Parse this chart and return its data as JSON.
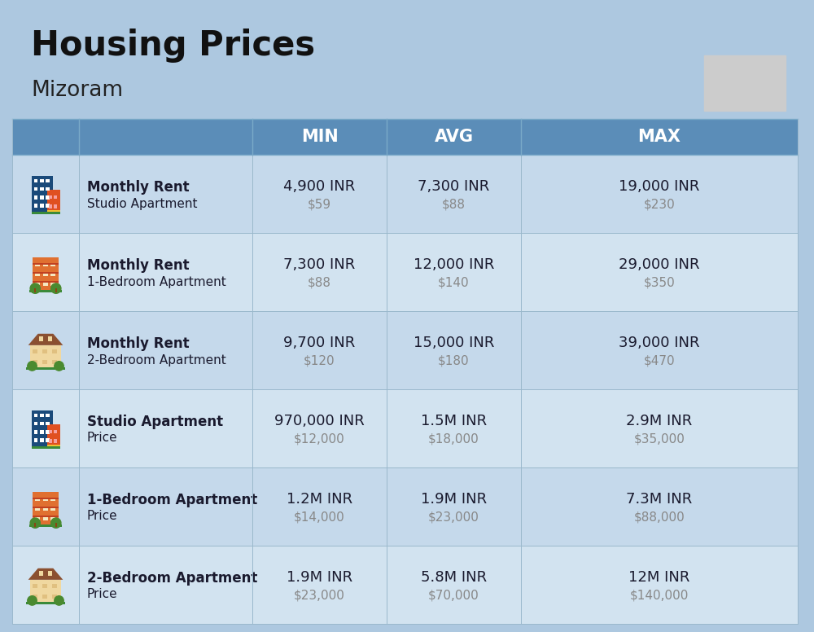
{
  "title": "Housing Prices",
  "subtitle": "Mizoram",
  "background_color": "#adc8e0",
  "header_bg_color": "#5b8db8",
  "header_text_color": "#ffffff",
  "row_bg_colors": [
    "#c5d9eb",
    "#d2e3f0"
  ],
  "col_headers": [
    "MIN",
    "AVG",
    "MAX"
  ],
  "rows": [
    {
      "bold_label": "Monthly Rent",
      "sub_label": "Studio Apartment",
      "min_inr": "4,900 INR",
      "min_usd": "$59",
      "avg_inr": "7,300 INR",
      "avg_usd": "$88",
      "max_inr": "19,000 INR",
      "max_usd": "$230",
      "icon_type": "blue_red"
    },
    {
      "bold_label": "Monthly Rent",
      "sub_label": "1-Bedroom Apartment",
      "min_inr": "7,300 INR",
      "min_usd": "$88",
      "avg_inr": "12,000 INR",
      "avg_usd": "$140",
      "max_inr": "29,000 INR",
      "max_usd": "$350",
      "icon_type": "orange_trees"
    },
    {
      "bold_label": "Monthly Rent",
      "sub_label": "2-Bedroom Apartment",
      "min_inr": "9,700 INR",
      "min_usd": "$120",
      "avg_inr": "15,000 INR",
      "avg_usd": "$180",
      "max_inr": "39,000 INR",
      "max_usd": "$470",
      "icon_type": "beige_house"
    },
    {
      "bold_label": "Studio Apartment",
      "sub_label": "Price",
      "min_inr": "970,000 INR",
      "min_usd": "$12,000",
      "avg_inr": "1.5M INR",
      "avg_usd": "$18,000",
      "max_inr": "2.9M INR",
      "max_usd": "$35,000",
      "icon_type": "blue_red"
    },
    {
      "bold_label": "1-Bedroom Apartment",
      "sub_label": "Price",
      "min_inr": "1.2M INR",
      "min_usd": "$14,000",
      "avg_inr": "1.9M INR",
      "avg_usd": "$23,000",
      "max_inr": "7.3M INR",
      "max_usd": "$88,000",
      "icon_type": "orange_trees"
    },
    {
      "bold_label": "2-Bedroom Apartment",
      "sub_label": "Price",
      "min_inr": "1.9M INR",
      "min_usd": "$23,000",
      "avg_inr": "5.8M INR",
      "avg_usd": "$70,000",
      "max_inr": "12M INR",
      "max_usd": "$140,000",
      "icon_type": "beige_house2"
    }
  ],
  "cell_text_color": "#1a1a2e",
  "cell_usd_color": "#888888",
  "title_fontsize": 30,
  "subtitle_fontsize": 19,
  "header_fontsize": 15,
  "cell_inr_fontsize": 13,
  "cell_usd_fontsize": 11,
  "label_bold_fontsize": 12,
  "label_sub_fontsize": 11
}
